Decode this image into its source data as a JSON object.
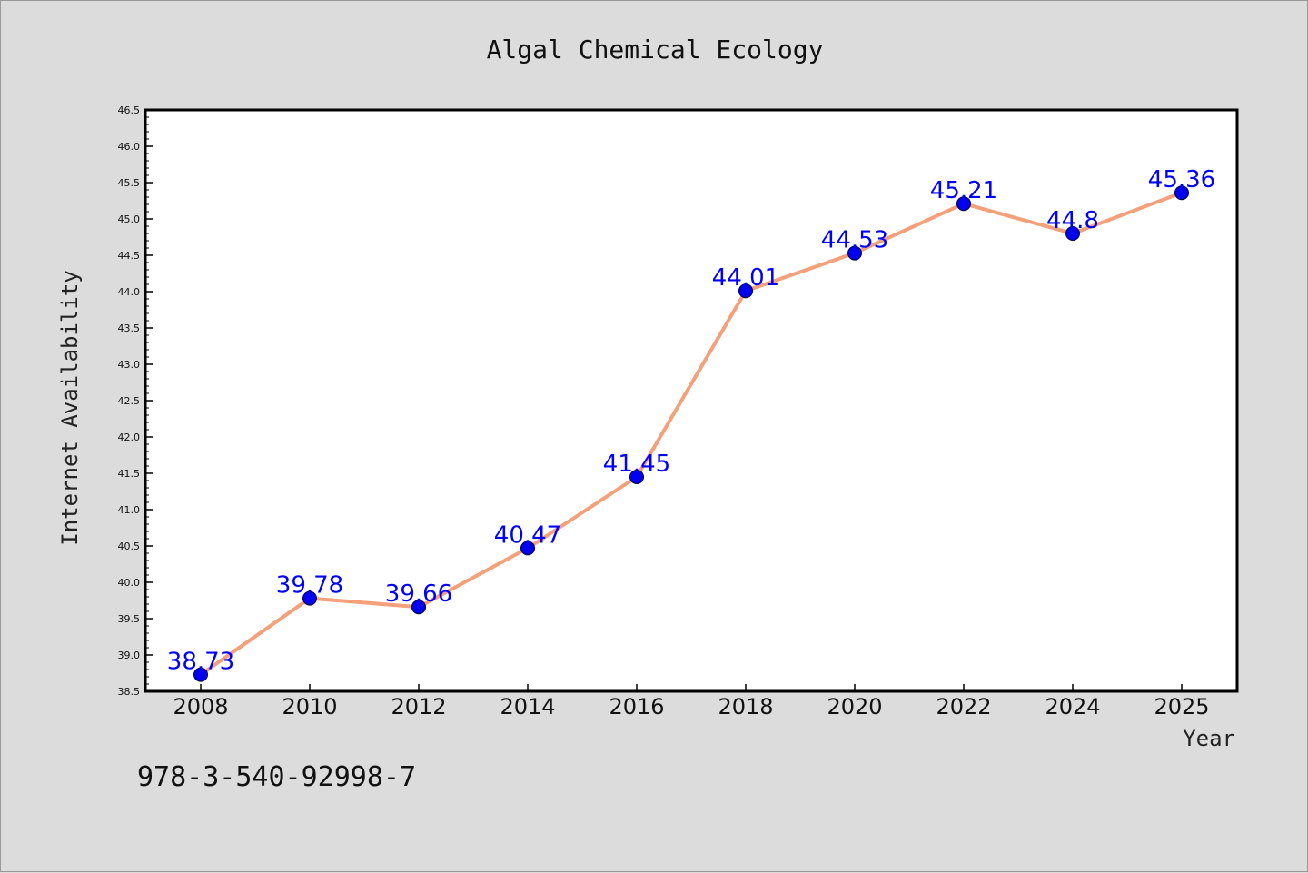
{
  "chart_data": {
    "type": "line",
    "title": "Algal Chemical Ecology",
    "xlabel": "Year",
    "ylabel": "Internet Availability",
    "x": [
      "2008",
      "2010",
      "2012",
      "2014",
      "2016",
      "2018",
      "2020",
      "2022",
      "2024",
      "2025"
    ],
    "series": [
      {
        "values": [
          38.73,
          39.78,
          39.66,
          40.47,
          41.45,
          44.01,
          44.53,
          45.21,
          44.8,
          45.36
        ],
        "labels": [
          "38.73",
          "39.78",
          "39.66",
          "40.47",
          "41.45",
          "44.01",
          "44.53",
          "45.21",
          "44.8",
          "45.36"
        ],
        "line_color": "#f4a07a",
        "marker_color": "#0000ee"
      }
    ],
    "ylim": [
      38.5,
      46.5
    ],
    "yticks": [
      "38.5",
      "39.0",
      "39.5",
      "40.0",
      "40.5",
      "41.0",
      "41.5",
      "42.0",
      "42.5",
      "43.0",
      "43.5",
      "44.0",
      "44.5",
      "45.0",
      "45.5",
      "46.0",
      "46.5"
    ],
    "grid": false,
    "legend": "none",
    "label_color": "#0000ff"
  },
  "footer": {
    "text": "978-3-540-92998-7"
  }
}
